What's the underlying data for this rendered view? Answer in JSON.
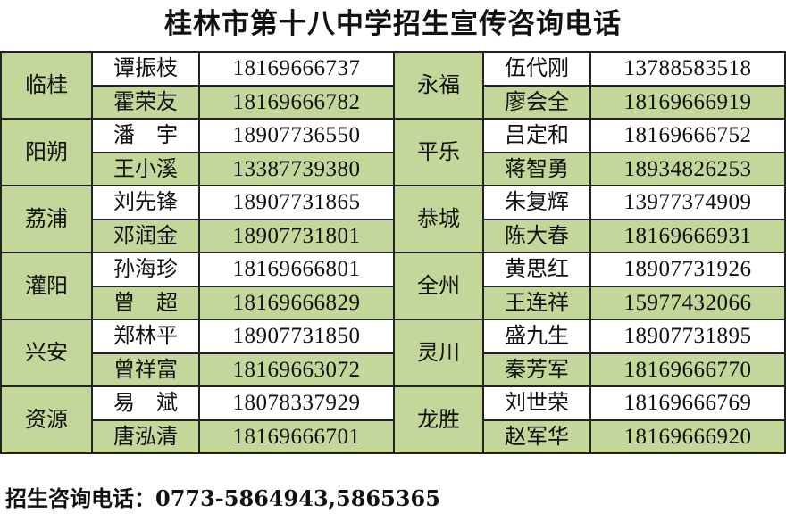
{
  "title": "桂林市第十八中学招生宣传咨询电话",
  "table": {
    "left": [
      {
        "region": "临桂",
        "contacts": [
          {
            "name": "谭振枝",
            "phone": "18169666737"
          },
          {
            "name": "霍荣友",
            "phone": "18169666782"
          }
        ]
      },
      {
        "region": "阳朔",
        "contacts": [
          {
            "name": "潘　宇",
            "phone": "18907736550"
          },
          {
            "name": "王小溪",
            "phone": "13387739380"
          }
        ]
      },
      {
        "region": "荔浦",
        "contacts": [
          {
            "name": "刘先锋",
            "phone": "18907731865"
          },
          {
            "name": "邓润金",
            "phone": "18907731801"
          }
        ]
      },
      {
        "region": "灌阳",
        "contacts": [
          {
            "name": "孙海珍",
            "phone": "18169666801"
          },
          {
            "name": "曾　超",
            "phone": "18169666829"
          }
        ]
      },
      {
        "region": "兴安",
        "contacts": [
          {
            "name": "郑林平",
            "phone": "18907731850"
          },
          {
            "name": "曾祥富",
            "phone": "18169663072"
          }
        ]
      },
      {
        "region": "资源",
        "contacts": [
          {
            "name": "易　斌",
            "phone": "18078337929"
          },
          {
            "name": "唐泓清",
            "phone": "18169666701"
          }
        ]
      }
    ],
    "right": [
      {
        "region": "永福",
        "contacts": [
          {
            "name": "伍代刚",
            "phone": "13788583518"
          },
          {
            "name": "廖会全",
            "phone": "18169666919"
          }
        ]
      },
      {
        "region": "平乐",
        "contacts": [
          {
            "name": "吕定和",
            "phone": "18169666752"
          },
          {
            "name": "蒋智勇",
            "phone": "18934826253"
          }
        ]
      },
      {
        "region": "恭城",
        "contacts": [
          {
            "name": "朱复辉",
            "phone": "13977374909"
          },
          {
            "name": "陈大春",
            "phone": "18169666931"
          }
        ]
      },
      {
        "region": "全州",
        "contacts": [
          {
            "name": "黄思红",
            "phone": "18907731926"
          },
          {
            "name": "王连祥",
            "phone": "15977432066"
          }
        ]
      },
      {
        "region": "灵川",
        "contacts": [
          {
            "name": "盛九生",
            "phone": "18907731895"
          },
          {
            "name": "秦芳军",
            "phone": "18169666770"
          }
        ]
      },
      {
        "region": "龙胜",
        "contacts": [
          {
            "name": "刘世荣",
            "phone": "18169666769"
          },
          {
            "name": "赵军华",
            "phone": "18169666920"
          }
        ]
      }
    ]
  },
  "footer": "招生咨询电话：0773-5864943,5865365",
  "colors": {
    "green_fill": "#c4d79b",
    "white_fill": "#ffffff",
    "border": "#222222"
  }
}
